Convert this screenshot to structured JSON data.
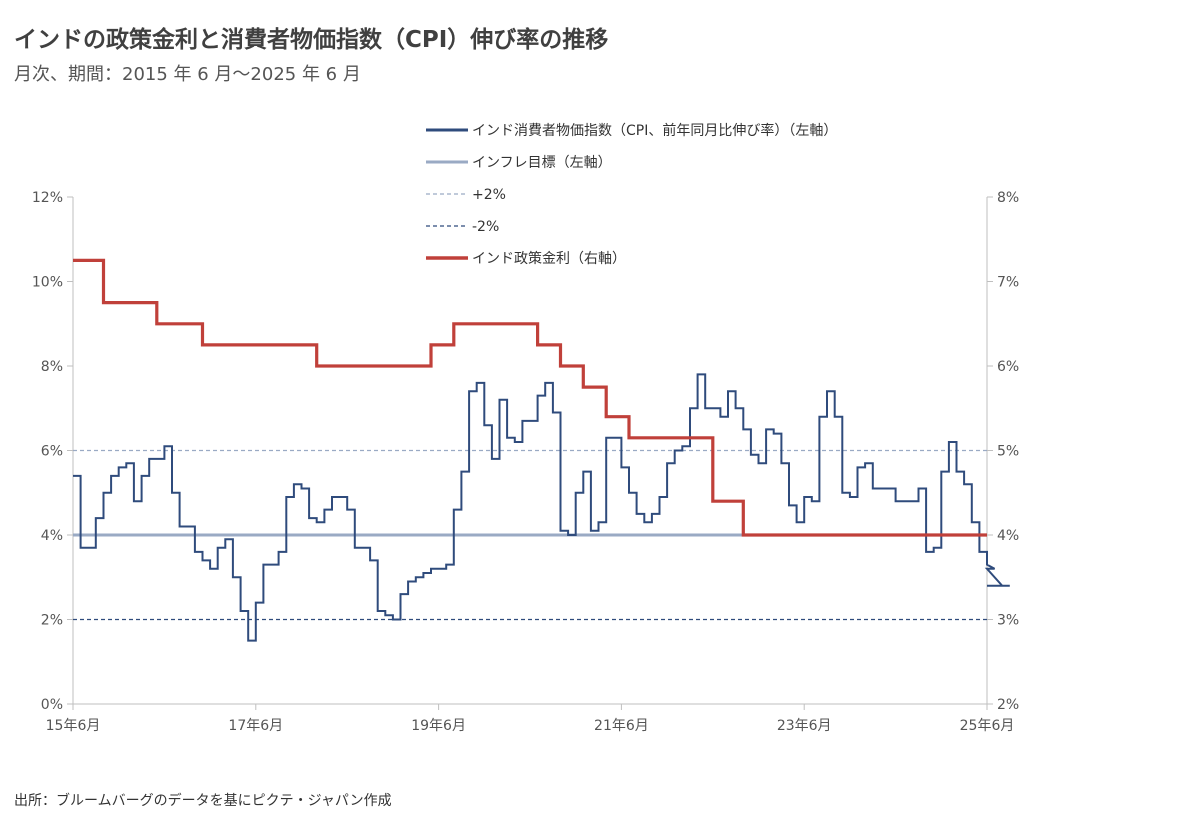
{
  "header": {
    "title": "インドの政策金利と消費者物価指数（CPI）伸び率の推移",
    "subtitle": "月次、期間：2015 年 6 月～2025 年 6 月"
  },
  "footer": {
    "source": "出所：ブルームバーグのデータを基にピクテ・ジャパン作成"
  },
  "colors": {
    "cpi": "#2f4b7c",
    "target": "#9aaac4",
    "band": "#2f4b7c",
    "rate": "#c0403a",
    "grid": "#bfbfbf"
  },
  "chart_data": {
    "type": "line",
    "x_range": [
      "2015-06",
      "2025-06"
    ],
    "x_ticks": [
      "15年6月",
      "17年6月",
      "19年6月",
      "21年6月",
      "23年6月",
      "25年6月"
    ],
    "y_left": {
      "ticks": [
        "0%",
        "2%",
        "4%",
        "6%",
        "8%",
        "10%",
        "12%"
      ],
      "min": 0,
      "max": 12
    },
    "y_right": {
      "ticks": [
        "2%",
        "3%",
        "4%",
        "5%",
        "6%",
        "7%",
        "8%"
      ],
      "min": 2,
      "max": 8
    },
    "legend": [
      "インド消費者物価指数（CPI、前年同月比伸び率）（左軸）",
      "インフレ目標（左軸）",
      "+2%",
      "-2%",
      "インド政策金利（右軸）"
    ],
    "series": [
      {
        "name": "インド消費者物価指数（CPI、前年同月比伸び率）（左軸）",
        "axis": "left",
        "start": "2015-06",
        "values": [
          5.4,
          3.7,
          3.7,
          4.4,
          5.0,
          5.4,
          5.6,
          5.7,
          4.8,
          5.4,
          5.8,
          5.8,
          6.1,
          5.0,
          4.2,
          4.2,
          3.6,
          3.4,
          3.2,
          3.7,
          3.9,
          3.0,
          2.2,
          1.5,
          2.4,
          3.3,
          3.3,
          3.6,
          4.9,
          5.2,
          5.1,
          4.4,
          4.3,
          4.6,
          4.9,
          4.9,
          4.6,
          3.7,
          3.7,
          3.4,
          2.2,
          2.1,
          2.0,
          2.6,
          2.9,
          3.0,
          3.1,
          3.2,
          3.2,
          3.3,
          4.6,
          5.5,
          7.4,
          7.6,
          6.6,
          5.8,
          7.2,
          6.3,
          6.2,
          6.7,
          6.7,
          7.3,
          7.6,
          6.9,
          4.1,
          4.0,
          5.0,
          5.5,
          4.1,
          4.3,
          6.3,
          6.3,
          5.6,
          5.0,
          4.5,
          4.3,
          4.5,
          4.9,
          5.7,
          6.0,
          6.1,
          7.0,
          7.8,
          7.0,
          7.0,
          6.8,
          7.4,
          7.0,
          6.5,
          5.9,
          5.7,
          6.5,
          6.4,
          5.7,
          4.7,
          4.3,
          4.9,
          4.8,
          6.8,
          7.4,
          6.8,
          5.0,
          4.9,
          5.6,
          5.7,
          5.1,
          5.1,
          5.1,
          4.8,
          4.8,
          4.8,
          5.1,
          3.6,
          3.7,
          5.5,
          6.2,
          5.5,
          5.2,
          4.3,
          3.6,
          3.3,
          3.2,
          2.8,
          2.8
        ]
      },
      {
        "name": "インド政策金利（右軸）",
        "axis": "right",
        "start": "2015-06",
        "values": [
          7.25,
          7.25,
          7.25,
          7.25,
          6.75,
          6.75,
          6.75,
          6.75,
          6.75,
          6.75,
          6.75,
          6.5,
          6.5,
          6.5,
          6.5,
          6.5,
          6.5,
          6.25,
          6.25,
          6.25,
          6.25,
          6.25,
          6.25,
          6.25,
          6.25,
          6.25,
          6.25,
          6.25,
          6.25,
          6.25,
          6.25,
          6.25,
          6.0,
          6.0,
          6.0,
          6.0,
          6.0,
          6.0,
          6.0,
          6.0,
          6.0,
          6.0,
          6.0,
          6.0,
          6.0,
          6.0,
          6.0,
          6.25,
          6.25,
          6.25,
          6.5,
          6.5,
          6.5,
          6.5,
          6.5,
          6.5,
          6.5,
          6.5,
          6.5,
          6.5,
          6.5,
          6.25,
          6.25,
          6.25,
          6.0,
          6.0,
          6.0,
          5.75,
          5.75,
          5.75,
          5.4,
          5.4,
          5.4,
          5.15,
          5.15,
          5.15,
          5.15,
          5.15,
          5.15,
          5.15,
          5.15,
          5.15,
          5.15,
          5.15,
          4.4,
          4.4,
          4.4,
          4.4,
          4.0,
          4.0,
          4.0,
          4.0,
          4.0,
          4.0,
          4.0,
          4.0,
          4.0,
          4.0,
          4.0,
          4.0,
          4.0,
          4.0,
          4.0,
          4.0,
          4.0,
          4.0,
          4.0,
          4.0,
          4.0,
          4.0,
          4.0,
          4.0,
          4.0,
          4.0,
          4.0,
          4.0,
          4.0,
          4.0,
          4.0,
          4.0,
          4.0
        ]
      },
      {
        "name": "インフレ目標（左軸）",
        "axis": "left",
        "value": 4
      },
      {
        "name": "+2%",
        "axis": "left",
        "value": 6
      },
      {
        "name": "-2%",
        "axis": "left",
        "value": 2
      }
    ]
  }
}
